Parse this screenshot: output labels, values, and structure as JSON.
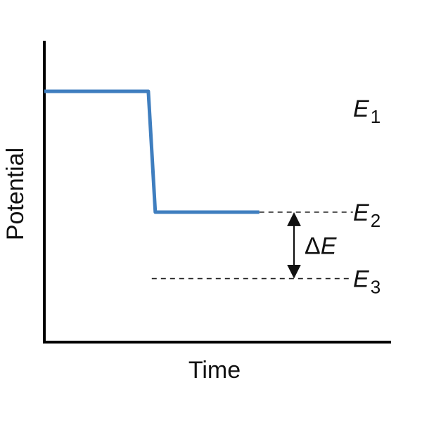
{
  "chart_data": {
    "type": "line",
    "xlabel": "Time",
    "ylabel": "Potential",
    "series": [
      {
        "color": "#3f7ebf",
        "points": [
          {
            "x": 0.0,
            "y": 1.0
          },
          {
            "x": 0.3,
            "y": 1.0
          },
          {
            "x": 0.32,
            "y": 0.0
          },
          {
            "x": 0.62,
            "y": 0.0
          }
        ]
      }
    ],
    "levels": [
      {
        "letter": "E",
        "sub": "1",
        "y": 1.0,
        "dashed": false
      },
      {
        "letter": "E",
        "sub": "2",
        "y": 0.0,
        "dashed": true,
        "dash_from": 0.62,
        "dash_to": 0.89
      },
      {
        "letter": "E",
        "sub": "3",
        "y": -0.55,
        "dashed": true,
        "dash_from": 0.31,
        "dash_to": 0.89
      }
    ],
    "annotation": {
      "symbol": "Δ",
      "letter": "E",
      "from_level": "2",
      "to_level": "3",
      "x": 0.72
    },
    "xlim": [
      0,
      1
    ],
    "ylim": [
      -1.0,
      1.3
    ],
    "grid": false,
    "legend": "none"
  }
}
